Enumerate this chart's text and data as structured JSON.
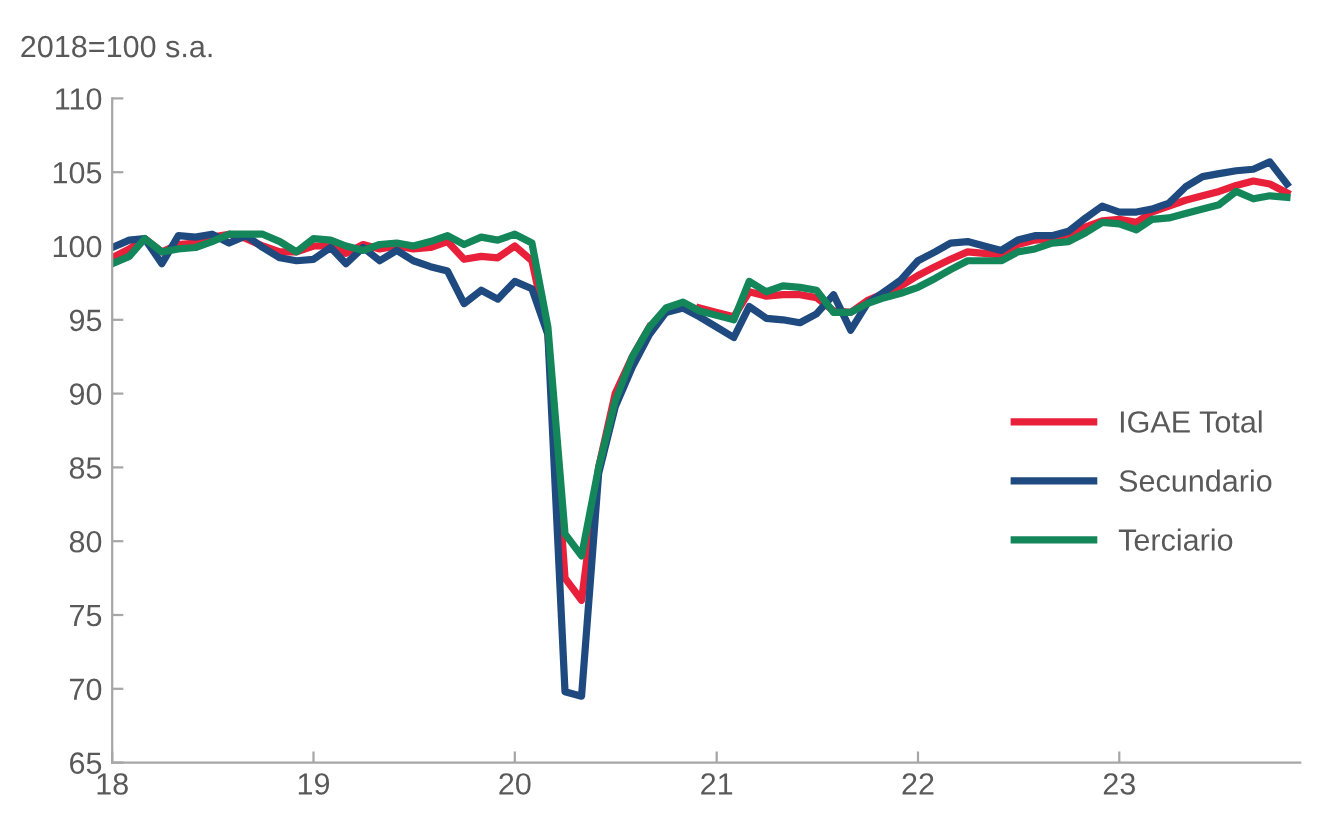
{
  "chart_data": {
    "type": "line",
    "ylabel": "2018=100 s.a.",
    "x": [
      "2018-01",
      "2018-02",
      "2018-03",
      "2018-04",
      "2018-05",
      "2018-06",
      "2018-07",
      "2018-08",
      "2018-09",
      "2018-10",
      "2018-11",
      "2018-12",
      "2019-01",
      "2019-02",
      "2019-03",
      "2019-04",
      "2019-05",
      "2019-06",
      "2019-07",
      "2019-08",
      "2019-09",
      "2019-10",
      "2019-11",
      "2019-12",
      "2020-01",
      "2020-02",
      "2020-03",
      "2020-04",
      "2020-05",
      "2020-06",
      "2020-07",
      "2020-08",
      "2020-09",
      "2020-10",
      "2020-11",
      "2020-12",
      "2021-01",
      "2021-02",
      "2021-03",
      "2021-04",
      "2021-05",
      "2021-06",
      "2021-07",
      "2021-08",
      "2021-09",
      "2021-10",
      "2021-11",
      "2021-12",
      "2022-01",
      "2022-02",
      "2022-03",
      "2022-04",
      "2022-05",
      "2022-06",
      "2022-07",
      "2022-08",
      "2022-09",
      "2022-10",
      "2022-11",
      "2022-12",
      "2023-01",
      "2023-02",
      "2023-03",
      "2023-04",
      "2023-05",
      "2023-06",
      "2023-07",
      "2023-08",
      "2023-09",
      "2023-10",
      "2023-11"
    ],
    "series": [
      {
        "name": "IGAE Total",
        "color": "#e8203a",
        "values": [
          99.2,
          99.8,
          100.5,
          99.6,
          100.1,
          100.2,
          100.6,
          100.8,
          100.5,
          100.0,
          99.6,
          99.6,
          100.0,
          100.0,
          99.5,
          100.1,
          99.8,
          100.0,
          99.8,
          99.9,
          100.3,
          99.1,
          99.3,
          99.2,
          100.0,
          99.0,
          94.0,
          77.5,
          76.0,
          85.0,
          90.0,
          92.5,
          94.5,
          null,
          null,
          95.8,
          95.5,
          95.2,
          96.9,
          96.6,
          96.7,
          96.7,
          96.5,
          95.6,
          95.5,
          96.3,
          96.8,
          97.3,
          98.0,
          98.6,
          99.1,
          99.6,
          99.5,
          99.4,
          100.1,
          100.4,
          100.5,
          100.8,
          101.3,
          101.7,
          101.8,
          101.6,
          102.3,
          102.7,
          103.1,
          103.4,
          103.7,
          104.1,
          104.4,
          104.2,
          103.6
        ]
      },
      {
        "name": "Secundario",
        "color": "#1f4a7f",
        "values": [
          99.9,
          100.4,
          100.5,
          98.8,
          100.7,
          100.6,
          100.8,
          100.2,
          100.7,
          99.9,
          99.2,
          99.0,
          99.1,
          99.9,
          98.8,
          99.9,
          99.0,
          99.7,
          99.0,
          98.6,
          98.3,
          96.1,
          97.0,
          96.4,
          97.6,
          97.1,
          94.0,
          69.8,
          69.5,
          84.6,
          89.1,
          91.8,
          94.0,
          95.5,
          95.8,
          95.2,
          94.5,
          93.8,
          95.9,
          95.1,
          95.0,
          94.8,
          95.4,
          96.7,
          94.3,
          96.1,
          96.9,
          97.7,
          99.0,
          99.6,
          100.2,
          100.3,
          100.0,
          99.7,
          100.4,
          100.7,
          100.7,
          101.0,
          101.9,
          102.7,
          102.3,
          102.3,
          102.5,
          102.9,
          104.0,
          104.7,
          104.9,
          105.1,
          105.2,
          105.7,
          104.2
        ]
      },
      {
        "name": "Terciario",
        "color": "#13865a",
        "values": [
          98.8,
          99.3,
          100.5,
          99.6,
          99.8,
          99.9,
          100.3,
          100.8,
          100.8,
          100.8,
          100.3,
          99.6,
          100.5,
          100.4,
          100.0,
          99.7,
          100.1,
          100.2,
          100.0,
          100.3,
          100.7,
          100.1,
          100.6,
          100.4,
          100.8,
          100.2,
          94.5,
          80.5,
          79.0,
          85.0,
          89.5,
          92.5,
          94.5,
          95.8,
          96.2,
          95.6,
          95.3,
          95.0,
          97.6,
          96.9,
          97.3,
          97.2,
          97.0,
          95.5,
          95.5,
          96.1,
          96.5,
          96.8,
          97.2,
          97.8,
          98.4,
          99.0,
          99.0,
          99.0,
          99.6,
          99.8,
          100.2,
          100.3,
          100.9,
          101.6,
          101.5,
          101.1,
          101.8,
          101.9,
          102.2,
          102.5,
          102.8,
          103.7,
          103.2,
          103.4,
          103.3
        ]
      }
    ],
    "xlim": [
      "2018-01-01",
      "2023-11-25"
    ],
    "xticks": [
      {
        "value": "2018-01-01",
        "label": "18"
      },
      {
        "value": "2019-01-01",
        "label": "19"
      },
      {
        "value": "2020-01-01",
        "label": "20"
      },
      {
        "value": "2021-01-01",
        "label": "21"
      },
      {
        "value": "2022-01-01",
        "label": "22"
      },
      {
        "value": "2023-01-01",
        "label": "23"
      }
    ],
    "ylim": [
      65,
      110
    ],
    "yticks": [
      65,
      70,
      75,
      80,
      85,
      90,
      95,
      100,
      105,
      110
    ],
    "grid": false,
    "legend": "right",
    "marker": "none",
    "line_style": "solid"
  }
}
